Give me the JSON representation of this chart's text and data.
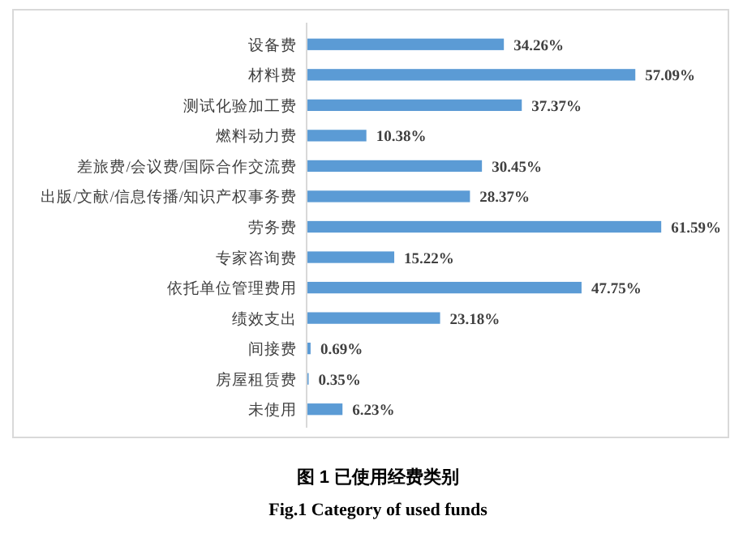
{
  "chart_data": {
    "type": "bar",
    "orientation": "horizontal",
    "title": "图 1  已使用经费类别",
    "subtitle": "Fig.1 Category of used funds",
    "categories": [
      "设备费",
      "材料费",
      "测试化验加工费",
      "燃料动力费",
      "差旅费/会议费/国际合作交流费",
      "出版/文献/信息传播/知识产权事务费",
      "劳务费",
      "专家咨询费",
      "依托单位管理费用",
      "绩效支出",
      "间接费",
      "房屋租赁费",
      "未使用"
    ],
    "values": [
      34.26,
      57.09,
      37.37,
      10.38,
      30.45,
      28.37,
      61.59,
      15.22,
      47.75,
      23.18,
      0.69,
      0.35,
      6.23
    ],
    "value_labels": [
      "34.26%",
      "57.09%",
      "37.37%",
      "10.38%",
      "30.45%",
      "28.37%",
      "61.59%",
      "15.22%",
      "47.75%",
      "23.18%",
      "0.69%",
      "0.35%",
      "6.23%"
    ],
    "color": "#5b9bd5"
  }
}
